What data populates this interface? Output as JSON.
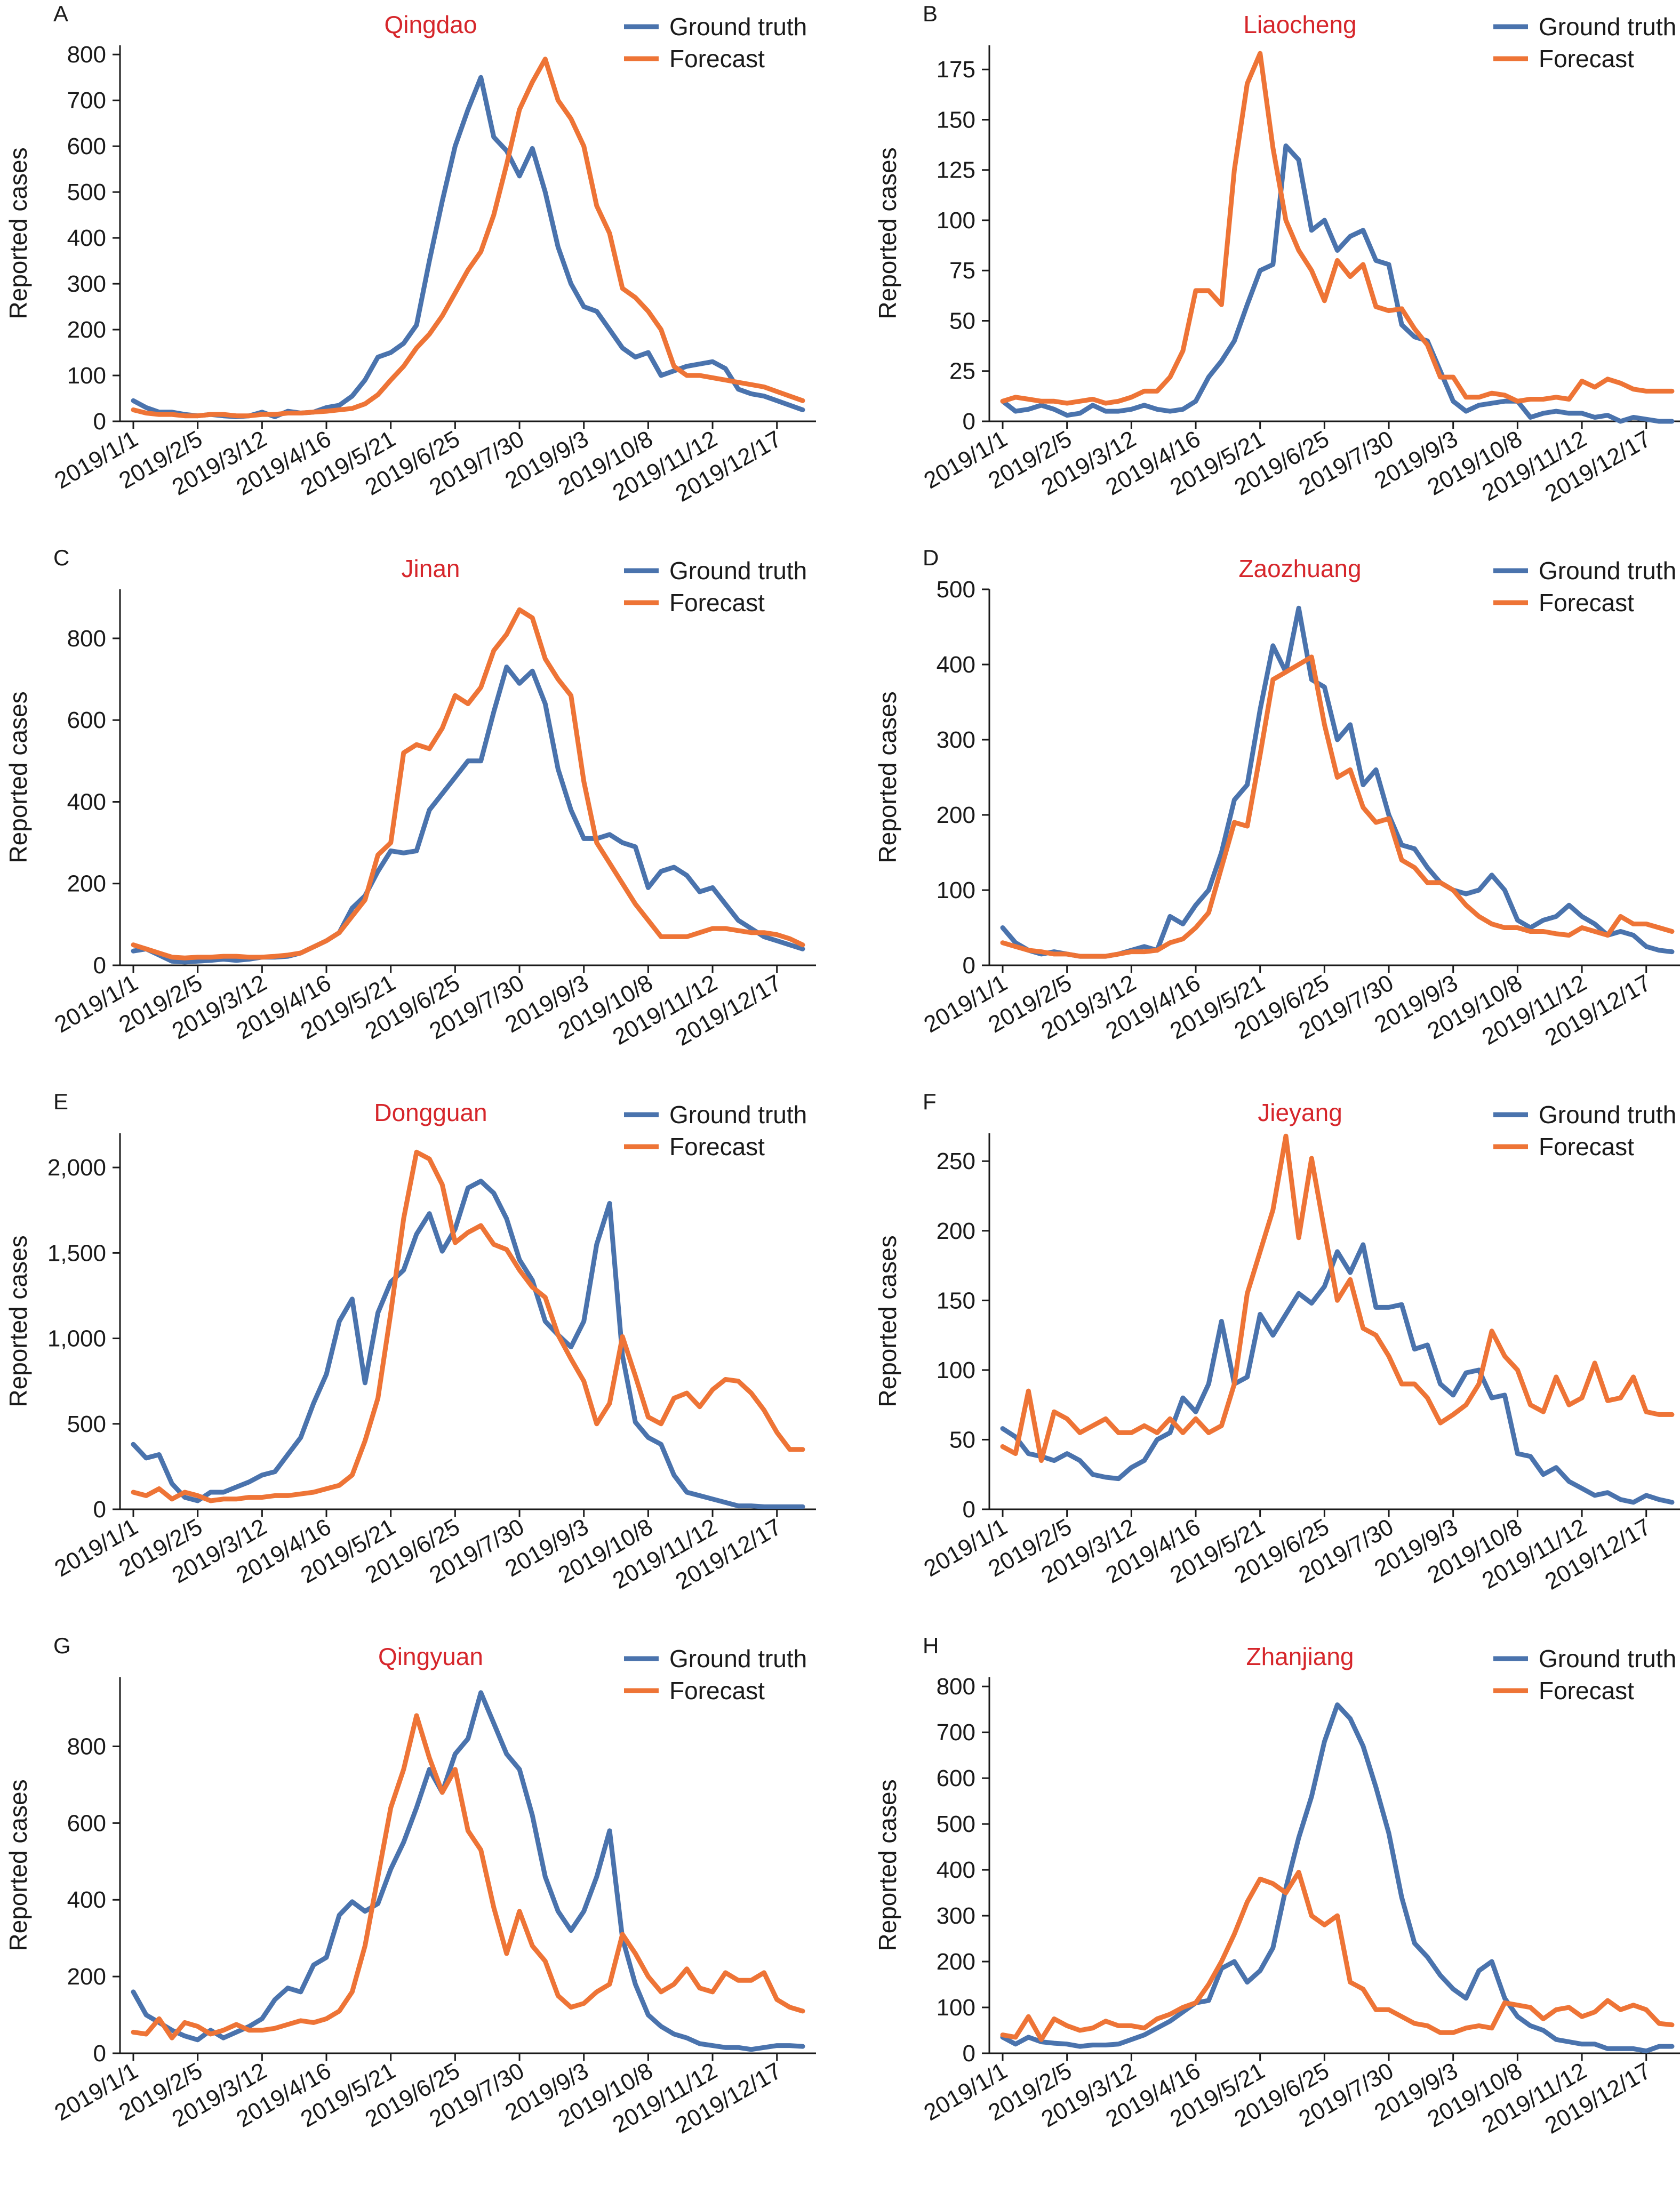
{
  "legend": {
    "ground_truth": "Ground truth",
    "forecast": "Forecast"
  },
  "colors": {
    "ground_truth": "#4a73ad",
    "forecast": "#ee7436",
    "title": "#d6262b"
  },
  "y_axis_label": "Reported cases",
  "x_ticks": [
    "2019/1/1",
    "2019/2/5",
    "2019/3/12",
    "2019/4/16",
    "2019/5/21",
    "2019/6/25",
    "2019/7/30",
    "2019/9/3",
    "2019/10/8",
    "2019/11/12",
    "2019/12/17"
  ],
  "chart_data": [
    {
      "letter": "A",
      "title": "Qingdao",
      "type": "line",
      "ylim": [
        0,
        820
      ],
      "yticks": [
        0,
        100,
        200,
        300,
        400,
        500,
        600,
        700,
        800
      ],
      "ytick_labels": [
        "0",
        "100",
        "200",
        "300",
        "400",
        "500",
        "600",
        "700",
        "800"
      ],
      "legend_position": "top-right",
      "series": [
        {
          "name": "Ground truth",
          "values": [
            45,
            30,
            20,
            20,
            15,
            12,
            15,
            12,
            10,
            12,
            20,
            10,
            22,
            18,
            20,
            30,
            35,
            55,
            90,
            140,
            150,
            170,
            210,
            350,
            480,
            600,
            680,
            750,
            620,
            590,
            535,
            595,
            500,
            380,
            300,
            250,
            240,
            200,
            160,
            140,
            150,
            100,
            110,
            120,
            125,
            130,
            115,
            70,
            60,
            55,
            45,
            35,
            25
          ]
        },
        {
          "name": "Forecast",
          "values": [
            25,
            18,
            15,
            15,
            12,
            12,
            15,
            15,
            12,
            12,
            15,
            15,
            18,
            18,
            20,
            22,
            25,
            28,
            38,
            58,
            90,
            120,
            160,
            190,
            230,
            280,
            330,
            370,
            450,
            560,
            680,
            740,
            790,
            700,
            660,
            600,
            470,
            410,
            290,
            270,
            240,
            200,
            120,
            100,
            100,
            95,
            90,
            85,
            80,
            75,
            65,
            55,
            45
          ]
        }
      ]
    },
    {
      "letter": "B",
      "title": "Liaocheng",
      "type": "line",
      "ylim": [
        0,
        187
      ],
      "yticks": [
        0,
        25,
        50,
        75,
        100,
        125,
        150,
        175
      ],
      "ytick_labels": [
        "0",
        "25",
        "50",
        "75",
        "100",
        "125",
        "150",
        "175"
      ],
      "legend_position": "top-right",
      "series": [
        {
          "name": "Ground truth",
          "values": [
            10,
            5,
            6,
            8,
            6,
            3,
            4,
            8,
            5,
            5,
            6,
            8,
            6,
            5,
            6,
            10,
            22,
            30,
            40,
            58,
            75,
            78,
            137,
            130,
            95,
            100,
            85,
            92,
            95,
            80,
            78,
            48,
            42,
            40,
            25,
            10,
            5,
            8,
            9,
            10,
            10,
            2,
            4,
            5,
            4,
            4,
            2,
            3,
            0,
            2,
            1,
            0,
            0
          ]
        },
        {
          "name": "Forecast",
          "values": [
            10,
            12,
            11,
            10,
            10,
            9,
            10,
            11,
            9,
            10,
            12,
            15,
            15,
            22,
            35,
            65,
            65,
            58,
            125,
            168,
            183,
            136,
            100,
            85,
            75,
            60,
            80,
            72,
            78,
            57,
            55,
            56,
            46,
            38,
            22,
            22,
            12,
            12,
            14,
            13,
            10,
            11,
            11,
            12,
            11,
            20,
            17,
            21,
            19,
            16,
            15,
            15,
            15
          ]
        }
      ]
    },
    {
      "letter": "C",
      "title": "Jinan",
      "type": "line",
      "ylim": [
        0,
        920
      ],
      "yticks": [
        0,
        200,
        400,
        600,
        800
      ],
      "ytick_labels": [
        "0",
        "200",
        "400",
        "600",
        "800"
      ],
      "legend_position": "top-right",
      "series": [
        {
          "name": "Ground truth",
          "values": [
            35,
            40,
            25,
            10,
            8,
            10,
            12,
            15,
            12,
            15,
            20,
            20,
            22,
            30,
            45,
            60,
            80,
            140,
            170,
            230,
            280,
            275,
            280,
            380,
            420,
            460,
            500,
            500,
            620,
            730,
            690,
            720,
            640,
            480,
            380,
            310,
            310,
            320,
            300,
            290,
            190,
            230,
            240,
            220,
            180,
            190,
            150,
            110,
            90,
            70,
            60,
            50,
            40
          ]
        },
        {
          "name": "Forecast",
          "values": [
            50,
            40,
            30,
            20,
            18,
            20,
            20,
            22,
            22,
            20,
            20,
            22,
            25,
            30,
            45,
            60,
            80,
            120,
            160,
            270,
            300,
            520,
            540,
            530,
            580,
            660,
            640,
            680,
            770,
            810,
            870,
            850,
            750,
            700,
            660,
            450,
            300,
            250,
            200,
            150,
            110,
            70,
            70,
            70,
            80,
            90,
            90,
            85,
            80,
            80,
            75,
            65,
            50
          ]
        }
      ]
    },
    {
      "letter": "D",
      "title": "Zaozhuang",
      "type": "line",
      "ylim": [
        0,
        500
      ],
      "yticks": [
        0,
        100,
        200,
        300,
        400,
        500
      ],
      "ytick_labels": [
        "0",
        "100",
        "200",
        "300",
        "400",
        "500"
      ],
      "legend_position": "top-right",
      "series": [
        {
          "name": "Ground truth",
          "values": [
            50,
            30,
            20,
            15,
            18,
            15,
            12,
            12,
            12,
            15,
            20,
            25,
            20,
            65,
            55,
            80,
            100,
            150,
            220,
            240,
            340,
            425,
            390,
            475,
            380,
            370,
            300,
            320,
            240,
            260,
            200,
            160,
            155,
            130,
            110,
            100,
            95,
            100,
            120,
            100,
            60,
            50,
            60,
            65,
            80,
            65,
            55,
            40,
            45,
            40,
            25,
            20,
            18
          ]
        },
        {
          "name": "Forecast",
          "values": [
            30,
            25,
            20,
            18,
            15,
            15,
            12,
            12,
            12,
            15,
            18,
            18,
            20,
            30,
            35,
            50,
            70,
            130,
            190,
            185,
            280,
            380,
            390,
            400,
            410,
            320,
            250,
            260,
            210,
            190,
            195,
            140,
            130,
            110,
            110,
            100,
            80,
            65,
            55,
            50,
            50,
            45,
            45,
            42,
            40,
            50,
            45,
            40,
            65,
            55,
            55,
            50,
            45
          ]
        }
      ]
    },
    {
      "letter": "E",
      "title": "Dongguan",
      "type": "line",
      "ylim": [
        0,
        2200
      ],
      "yticks": [
        0,
        500,
        1000,
        1500,
        2000
      ],
      "ytick_labels": [
        "0",
        "500",
        "1,000",
        "1,500",
        "2,000"
      ],
      "legend_position": "top-right",
      "series": [
        {
          "name": "Ground truth",
          "values": [
            380,
            300,
            320,
            150,
            70,
            50,
            100,
            100,
            130,
            160,
            200,
            220,
            320,
            420,
            620,
            790,
            1100,
            1230,
            740,
            1150,
            1330,
            1400,
            1610,
            1730,
            1510,
            1640,
            1880,
            1920,
            1850,
            1700,
            1460,
            1340,
            1100,
            1020,
            950,
            1100,
            1550,
            1790,
            900,
            510,
            420,
            380,
            200,
            100,
            80,
            60,
            40,
            20,
            20,
            15,
            15,
            15,
            15
          ]
        },
        {
          "name": "Forecast",
          "values": [
            100,
            80,
            120,
            60,
            100,
            80,
            50,
            60,
            60,
            70,
            70,
            80,
            80,
            90,
            100,
            120,
            140,
            200,
            400,
            650,
            1150,
            1700,
            2090,
            2050,
            1900,
            1560,
            1620,
            1660,
            1550,
            1520,
            1400,
            1300,
            1240,
            1020,
            880,
            750,
            500,
            620,
            1010,
            780,
            540,
            500,
            650,
            680,
            600,
            700,
            760,
            750,
            680,
            580,
            450,
            350,
            350
          ]
        }
      ]
    },
    {
      "letter": "F",
      "title": "Jieyang",
      "type": "line",
      "ylim": [
        0,
        270
      ],
      "yticks": [
        0,
        50,
        100,
        150,
        200,
        250
      ],
      "ytick_labels": [
        "0",
        "50",
        "100",
        "150",
        "200",
        "250"
      ],
      "legend_position": "top-right",
      "series": [
        {
          "name": "Ground truth",
          "values": [
            58,
            52,
            40,
            38,
            35,
            40,
            35,
            25,
            23,
            22,
            30,
            35,
            50,
            55,
            80,
            70,
            90,
            135,
            90,
            95,
            140,
            125,
            140,
            155,
            148,
            160,
            185,
            170,
            190,
            145,
            145,
            147,
            115,
            118,
            90,
            82,
            98,
            100,
            80,
            82,
            40,
            38,
            25,
            30,
            20,
            15,
            10,
            12,
            7,
            5,
            10,
            7,
            5
          ]
        },
        {
          "name": "Forecast",
          "values": [
            45,
            40,
            85,
            35,
            70,
            65,
            55,
            60,
            65,
            55,
            55,
            60,
            55,
            65,
            55,
            65,
            55,
            60,
            90,
            155,
            185,
            215,
            268,
            195,
            252,
            200,
            150,
            165,
            130,
            125,
            110,
            90,
            90,
            80,
            62,
            68,
            75,
            90,
            128,
            110,
            100,
            75,
            70,
            95,
            75,
            80,
            105,
            78,
            80,
            95,
            70,
            68,
            68
          ]
        }
      ]
    },
    {
      "letter": "G",
      "title": "Qingyuan",
      "type": "line",
      "ylim": [
        0,
        980
      ],
      "yticks": [
        0,
        200,
        400,
        600,
        800
      ],
      "ytick_labels": [
        "0",
        "200",
        "400",
        "600",
        "800"
      ],
      "legend_position": "top-right",
      "series": [
        {
          "name": "Ground truth",
          "values": [
            160,
            100,
            80,
            60,
            45,
            35,
            60,
            40,
            55,
            70,
            90,
            140,
            170,
            160,
            230,
            250,
            360,
            395,
            370,
            390,
            480,
            550,
            640,
            740,
            680,
            780,
            820,
            940,
            860,
            780,
            740,
            620,
            460,
            370,
            320,
            370,
            460,
            580,
            300,
            180,
            100,
            70,
            50,
            40,
            25,
            20,
            15,
            15,
            10,
            15,
            20,
            20,
            18
          ]
        },
        {
          "name": "Forecast",
          "values": [
            55,
            50,
            90,
            40,
            80,
            70,
            50,
            60,
            75,
            60,
            60,
            65,
            75,
            85,
            80,
            90,
            110,
            160,
            280,
            460,
            640,
            740,
            880,
            770,
            680,
            740,
            580,
            530,
            380,
            260,
            370,
            280,
            240,
            150,
            120,
            130,
            160,
            180,
            310,
            260,
            200,
            160,
            180,
            220,
            170,
            160,
            210,
            190,
            190,
            210,
            140,
            120,
            110
          ]
        }
      ]
    },
    {
      "letter": "H",
      "title": "Zhanjiang",
      "type": "line",
      "ylim": [
        0,
        820
      ],
      "yticks": [
        0,
        100,
        200,
        300,
        400,
        500,
        600,
        700,
        800
      ],
      "ytick_labels": [
        "0",
        "100",
        "200",
        "300",
        "400",
        "500",
        "600",
        "700",
        "800"
      ],
      "legend_position": "top-right",
      "series": [
        {
          "name": "Ground truth",
          "values": [
            35,
            20,
            35,
            25,
            22,
            20,
            15,
            18,
            18,
            20,
            30,
            40,
            55,
            70,
            90,
            110,
            115,
            185,
            200,
            155,
            180,
            230,
            360,
            470,
            560,
            680,
            760,
            730,
            670,
            580,
            480,
            340,
            240,
            210,
            170,
            140,
            120,
            180,
            200,
            120,
            80,
            60,
            50,
            30,
            25,
            20,
            20,
            10,
            10,
            10,
            5,
            15,
            15
          ]
        },
        {
          "name": "Forecast",
          "values": [
            40,
            35,
            80,
            30,
            75,
            60,
            50,
            55,
            70,
            60,
            60,
            55,
            75,
            85,
            100,
            110,
            150,
            200,
            260,
            330,
            380,
            370,
            350,
            395,
            300,
            280,
            300,
            155,
            140,
            95,
            95,
            80,
            65,
            60,
            45,
            45,
            55,
            60,
            55,
            110,
            105,
            100,
            75,
            95,
            100,
            80,
            90,
            115,
            95,
            105,
            95,
            65,
            62
          ]
        }
      ]
    }
  ]
}
